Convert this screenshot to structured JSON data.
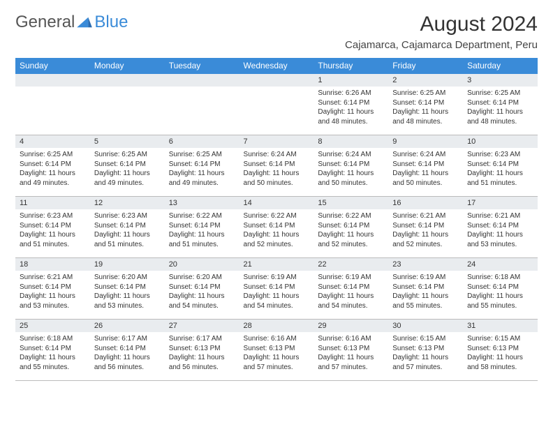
{
  "logo": {
    "text1": "General",
    "text2": "Blue"
  },
  "title": "August 2024",
  "subtitle": "Cajamarca, Cajamarca Department, Peru",
  "colors": {
    "header_bg": "#3a8bd8",
    "header_text": "#ffffff",
    "daybar_bg": "#e9ecef",
    "border_top": "#3a8bd8",
    "text": "#333333"
  },
  "weekdays": [
    "Sunday",
    "Monday",
    "Tuesday",
    "Wednesday",
    "Thursday",
    "Friday",
    "Saturday"
  ],
  "weeks": [
    [
      null,
      null,
      null,
      null,
      {
        "n": "1",
        "sr": "6:26 AM",
        "ss": "6:14 PM",
        "dl": "11 hours and 48 minutes."
      },
      {
        "n": "2",
        "sr": "6:25 AM",
        "ss": "6:14 PM",
        "dl": "11 hours and 48 minutes."
      },
      {
        "n": "3",
        "sr": "6:25 AM",
        "ss": "6:14 PM",
        "dl": "11 hours and 48 minutes."
      }
    ],
    [
      {
        "n": "4",
        "sr": "6:25 AM",
        "ss": "6:14 PM",
        "dl": "11 hours and 49 minutes."
      },
      {
        "n": "5",
        "sr": "6:25 AM",
        "ss": "6:14 PM",
        "dl": "11 hours and 49 minutes."
      },
      {
        "n": "6",
        "sr": "6:25 AM",
        "ss": "6:14 PM",
        "dl": "11 hours and 49 minutes."
      },
      {
        "n": "7",
        "sr": "6:24 AM",
        "ss": "6:14 PM",
        "dl": "11 hours and 50 minutes."
      },
      {
        "n": "8",
        "sr": "6:24 AM",
        "ss": "6:14 PM",
        "dl": "11 hours and 50 minutes."
      },
      {
        "n": "9",
        "sr": "6:24 AM",
        "ss": "6:14 PM",
        "dl": "11 hours and 50 minutes."
      },
      {
        "n": "10",
        "sr": "6:23 AM",
        "ss": "6:14 PM",
        "dl": "11 hours and 51 minutes."
      }
    ],
    [
      {
        "n": "11",
        "sr": "6:23 AM",
        "ss": "6:14 PM",
        "dl": "11 hours and 51 minutes."
      },
      {
        "n": "12",
        "sr": "6:23 AM",
        "ss": "6:14 PM",
        "dl": "11 hours and 51 minutes."
      },
      {
        "n": "13",
        "sr": "6:22 AM",
        "ss": "6:14 PM",
        "dl": "11 hours and 51 minutes."
      },
      {
        "n": "14",
        "sr": "6:22 AM",
        "ss": "6:14 PM",
        "dl": "11 hours and 52 minutes."
      },
      {
        "n": "15",
        "sr": "6:22 AM",
        "ss": "6:14 PM",
        "dl": "11 hours and 52 minutes."
      },
      {
        "n": "16",
        "sr": "6:21 AM",
        "ss": "6:14 PM",
        "dl": "11 hours and 52 minutes."
      },
      {
        "n": "17",
        "sr": "6:21 AM",
        "ss": "6:14 PM",
        "dl": "11 hours and 53 minutes."
      }
    ],
    [
      {
        "n": "18",
        "sr": "6:21 AM",
        "ss": "6:14 PM",
        "dl": "11 hours and 53 minutes."
      },
      {
        "n": "19",
        "sr": "6:20 AM",
        "ss": "6:14 PM",
        "dl": "11 hours and 53 minutes."
      },
      {
        "n": "20",
        "sr": "6:20 AM",
        "ss": "6:14 PM",
        "dl": "11 hours and 54 minutes."
      },
      {
        "n": "21",
        "sr": "6:19 AM",
        "ss": "6:14 PM",
        "dl": "11 hours and 54 minutes."
      },
      {
        "n": "22",
        "sr": "6:19 AM",
        "ss": "6:14 PM",
        "dl": "11 hours and 54 minutes."
      },
      {
        "n": "23",
        "sr": "6:19 AM",
        "ss": "6:14 PM",
        "dl": "11 hours and 55 minutes."
      },
      {
        "n": "24",
        "sr": "6:18 AM",
        "ss": "6:14 PM",
        "dl": "11 hours and 55 minutes."
      }
    ],
    [
      {
        "n": "25",
        "sr": "6:18 AM",
        "ss": "6:14 PM",
        "dl": "11 hours and 55 minutes."
      },
      {
        "n": "26",
        "sr": "6:17 AM",
        "ss": "6:14 PM",
        "dl": "11 hours and 56 minutes."
      },
      {
        "n": "27",
        "sr": "6:17 AM",
        "ss": "6:13 PM",
        "dl": "11 hours and 56 minutes."
      },
      {
        "n": "28",
        "sr": "6:16 AM",
        "ss": "6:13 PM",
        "dl": "11 hours and 57 minutes."
      },
      {
        "n": "29",
        "sr": "6:16 AM",
        "ss": "6:13 PM",
        "dl": "11 hours and 57 minutes."
      },
      {
        "n": "30",
        "sr": "6:15 AM",
        "ss": "6:13 PM",
        "dl": "11 hours and 57 minutes."
      },
      {
        "n": "31",
        "sr": "6:15 AM",
        "ss": "6:13 PM",
        "dl": "11 hours and 58 minutes."
      }
    ]
  ],
  "labels": {
    "sunrise": "Sunrise:",
    "sunset": "Sunset:",
    "daylight": "Daylight:"
  }
}
